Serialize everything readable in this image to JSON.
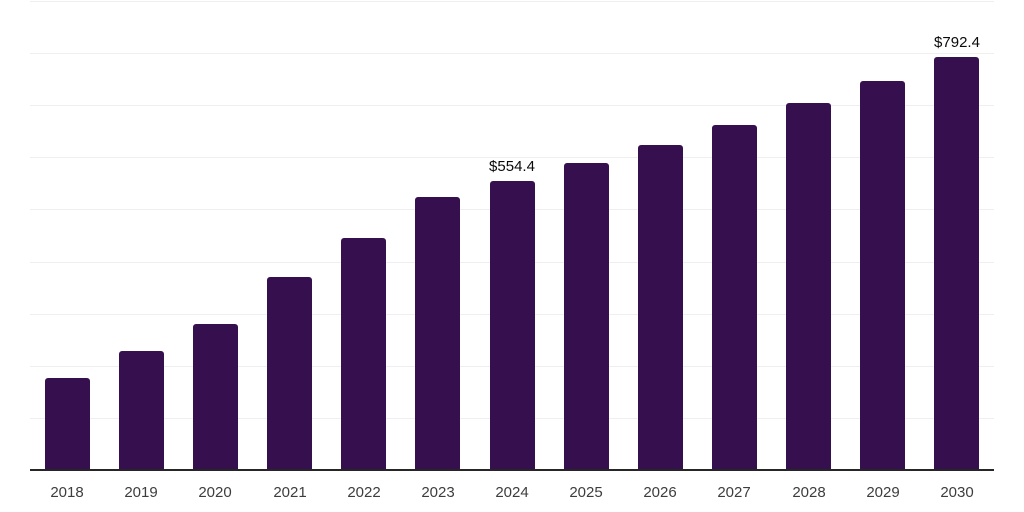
{
  "colors": {
    "background": "#ffffff",
    "bar": "#36104E",
    "gridline": "#efefef",
    "axis": "#262626",
    "tick_label": "#3d3d3d",
    "value_label": "#0a0a0a"
  },
  "chart_data": {
    "type": "bar",
    "title": "",
    "xlabel": "",
    "ylabel": "",
    "categories": [
      "2018",
      "2019",
      "2020",
      "2021",
      "2022",
      "2023",
      "2024",
      "2025",
      "2026",
      "2027",
      "2028",
      "2029",
      "2030"
    ],
    "values": [
      176.5,
      228.3,
      280.2,
      370.4,
      445.2,
      523.9,
      554.4,
      589.0,
      624.6,
      662.9,
      703.7,
      746.8,
      792.4
    ],
    "value_labels": [
      "",
      "",
      "",
      "",
      "",
      "",
      "$554.4",
      "",
      "",
      "",
      "",
      "",
      "$792.4"
    ],
    "ylim": [
      0,
      900
    ],
    "gridline_step": 100,
    "grid": true,
    "y_axis_labels_visible": false,
    "legend_position": "none"
  }
}
